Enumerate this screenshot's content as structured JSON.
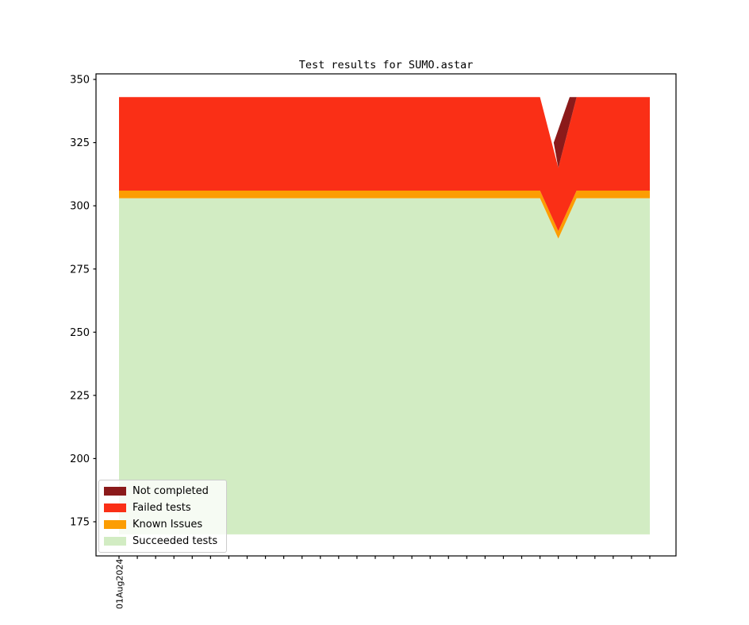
{
  "title": "Test results for SUMO.astar",
  "legend": {
    "items": [
      {
        "label": "Not completed",
        "color": "#8b1a1a"
      },
      {
        "label": "Failed tests",
        "color": "#fa2f16"
      },
      {
        "label": "Known Issues",
        "color": "#fc9d03"
      },
      {
        "label": "Succeeded tests",
        "color": "#d2ecc3"
      }
    ]
  },
  "axes": {
    "y_tick_values": [
      350,
      325,
      300,
      275,
      250,
      225,
      200,
      175
    ],
    "x_tick_count": 30,
    "x_first_tick_label": "01Aug2024"
  },
  "chart_data": {
    "type": "area",
    "stacked": true,
    "title": "Test results for SUMO.astar",
    "x_tick_count": 30,
    "x_visible_label": "01Aug2024",
    "ylim": [
      161.5,
      352.2
    ],
    "baseline_value": 170,
    "grid": false,
    "legend_position": "lower left",
    "dip_index": 24,
    "series": [
      {
        "name": "Succeeded tests",
        "color": "#d2ecc3",
        "values": [
          303,
          303,
          303,
          303,
          303,
          303,
          303,
          303,
          303,
          303,
          303,
          303,
          303,
          303,
          303,
          303,
          303,
          303,
          303,
          303,
          303,
          303,
          303,
          303,
          287,
          303,
          303,
          303,
          303,
          303
        ]
      },
      {
        "name": "Known Issues",
        "color": "#fc9d03",
        "values": [
          3,
          3,
          3,
          3,
          3,
          3,
          3,
          3,
          3,
          3,
          3,
          3,
          3,
          3,
          3,
          3,
          3,
          3,
          3,
          3,
          3,
          3,
          3,
          3,
          3,
          3,
          3,
          3,
          3,
          3
        ]
      },
      {
        "name": "Failed tests",
        "color": "#fa2f16",
        "values": [
          37,
          37,
          37,
          37,
          37,
          37,
          37,
          37,
          37,
          37,
          37,
          37,
          37,
          37,
          37,
          37,
          37,
          37,
          37,
          37,
          37,
          37,
          37,
          37,
          25,
          37,
          37,
          37,
          37,
          37
        ]
      },
      {
        "name": "Not completed",
        "color": "#8b1a1a",
        "values": [
          0,
          0,
          0,
          0,
          0,
          0,
          0,
          0,
          0,
          0,
          0,
          0,
          0,
          0,
          0,
          0,
          0,
          0,
          0,
          0,
          0,
          0,
          0,
          0,
          10,
          0,
          0,
          0,
          0,
          0
        ]
      }
    ],
    "not_completed_region_day_value": [
      [
        24.62,
        343
      ],
      [
        25,
        343
      ],
      [
        24,
        315
      ],
      [
        23.75,
        325
      ]
    ]
  }
}
